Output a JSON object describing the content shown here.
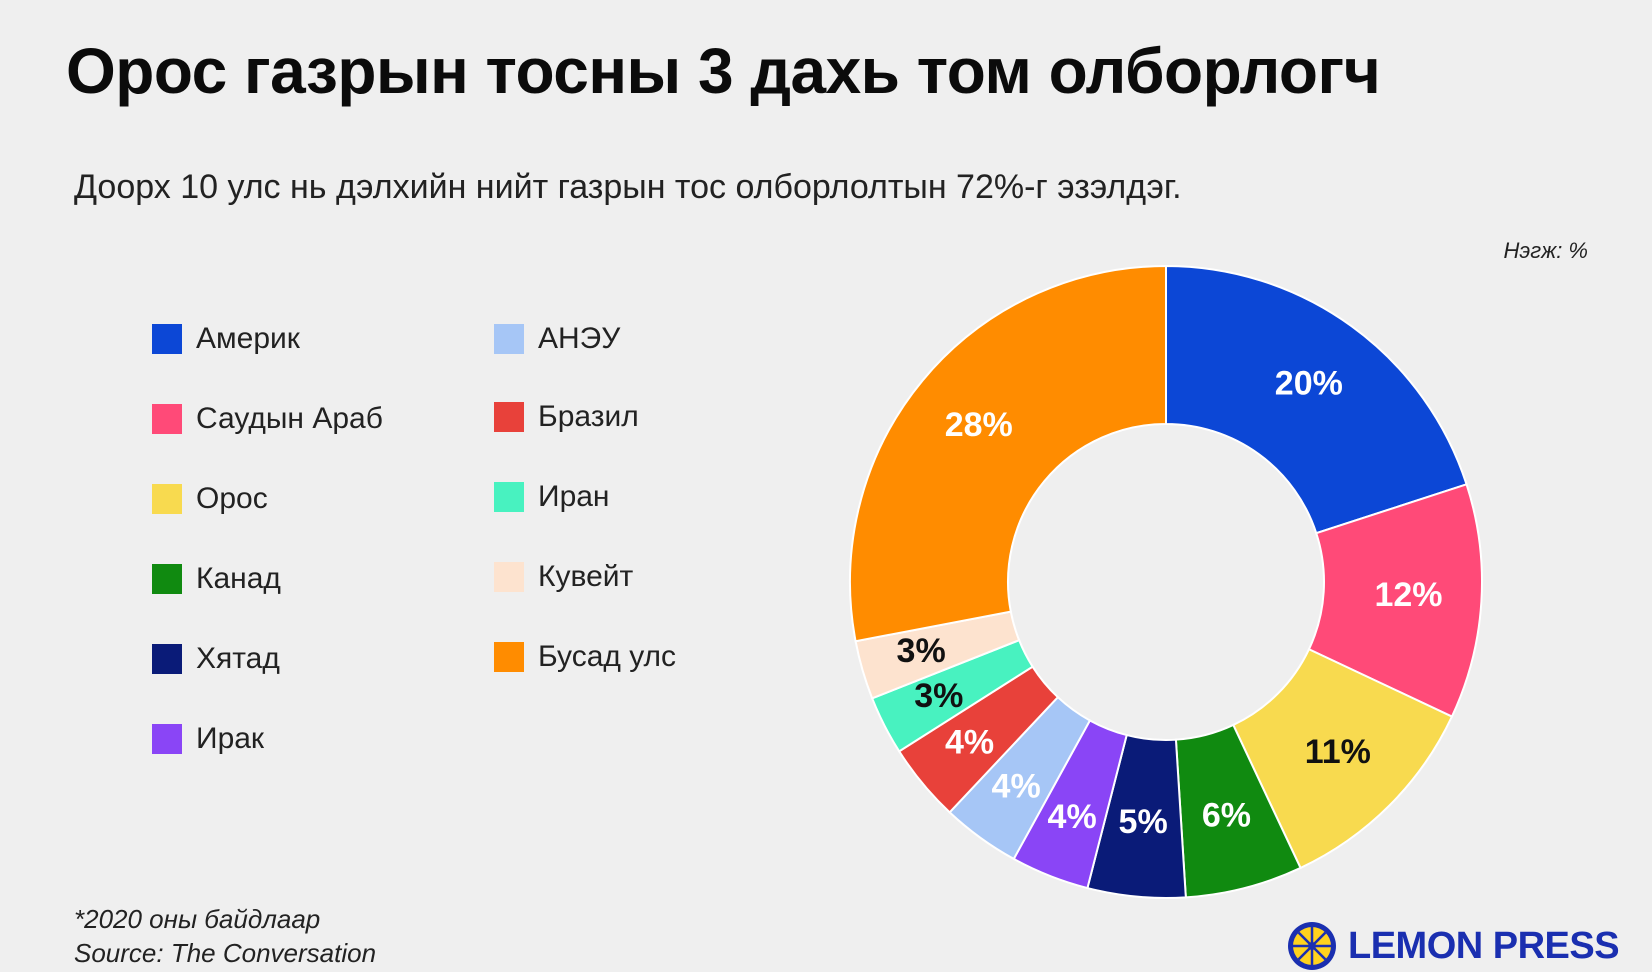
{
  "header": {
    "title": "Орос газрын тосны 3 дахь том олборлогч",
    "subtitle": "Доорх 10 улс нь дэлхийн нийт газрын тос олборлолтын 72%-г эзэлдэг.",
    "unit": "Нэгж: %"
  },
  "chart_data": {
    "type": "pie",
    "donut": true,
    "categories": [
      "Америк",
      "Саудын Араб",
      "Орос",
      "Канад",
      "Хятад",
      "Ирак",
      "АНЭУ",
      "Бразил",
      "Иран",
      "Кувейт",
      "Бусад улс"
    ],
    "values": [
      20,
      12,
      11,
      6,
      5,
      4,
      4,
      4,
      3,
      3,
      28
    ],
    "data_labels": [
      "20%",
      "12%",
      "11%",
      "6%",
      "5%",
      "4%",
      "4%",
      "4%",
      "3%",
      "3%",
      "28%"
    ],
    "colors": [
      "#0c47d6",
      "#ff4a78",
      "#f8da4f",
      "#108a10",
      "#0a1b78",
      "#8a45f6",
      "#a6c6f6",
      "#e8413a",
      "#48f2c0",
      "#fde3cf",
      "#ff8c00"
    ],
    "label_colors": [
      "#ffffff",
      "#ffffff",
      "#111111",
      "#ffffff",
      "#ffffff",
      "#ffffff",
      "#ffffff",
      "#ffffff",
      "#111111",
      "#111111",
      "#ffffff"
    ],
    "legend_placement": "left",
    "unit": "Нэгж: %"
  },
  "footer": {
    "note": "*2020 оны байдлаар",
    "source": "Source: The Conversation",
    "brand": "LEMON PRESS",
    "brand_icon": "lemon-slice-icon"
  }
}
